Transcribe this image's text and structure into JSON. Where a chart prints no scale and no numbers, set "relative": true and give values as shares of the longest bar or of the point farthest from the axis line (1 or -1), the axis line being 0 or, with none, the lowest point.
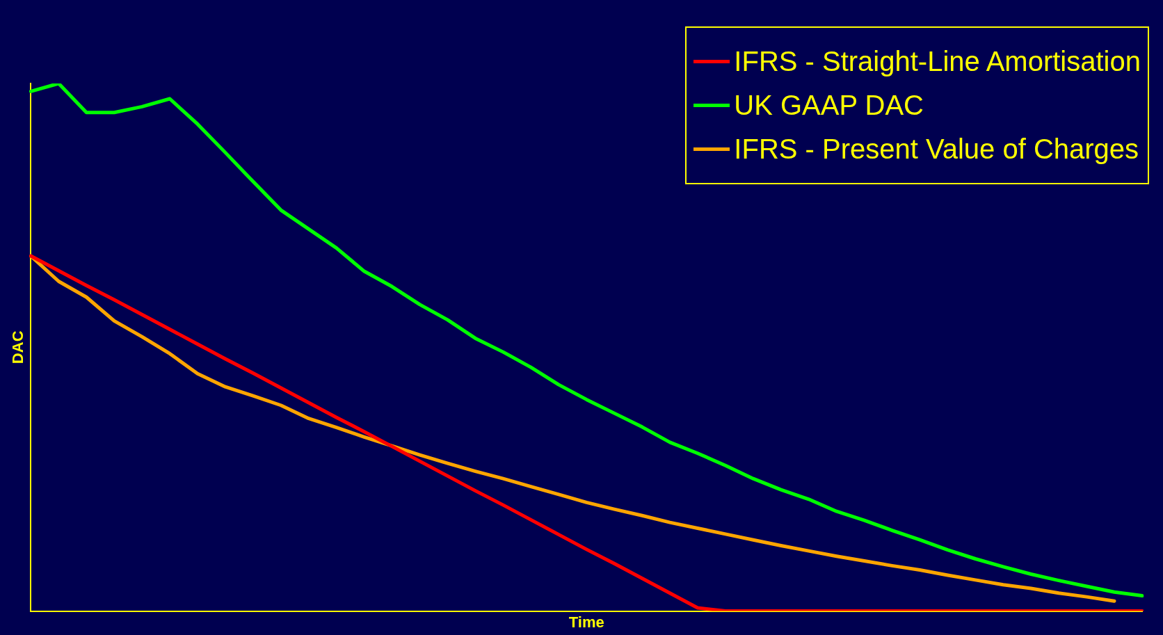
{
  "chart_data": {
    "type": "line",
    "relative": true,
    "xlabel": "Time",
    "ylabel": "DAC",
    "legend": "top right",
    "grid": false,
    "marker": "none",
    "line_style": "solid",
    "tick_labels": false,
    "categories": [
      null,
      null,
      null,
      null,
      null,
      null,
      null,
      null,
      null,
      null,
      null,
      null,
      null,
      null,
      null,
      null,
      null,
      null,
      null,
      null,
      null,
      null,
      null,
      null,
      null,
      null,
      null,
      null,
      null,
      null,
      null,
      null,
      null,
      null,
      null,
      null,
      null,
      null,
      null,
      null,
      null
    ],
    "series": [
      {
        "name": "IFRS - Straight-Line Amortisation",
        "color": "#ff0000",
        "values": [
          0.673,
          0.645,
          0.617,
          0.59,
          0.562,
          0.534,
          0.506,
          0.478,
          0.451,
          0.423,
          0.395,
          0.367,
          0.34,
          0.312,
          0.284,
          0.256,
          0.228,
          0.201,
          0.173,
          0.145,
          0.117,
          0.09,
          0.062,
          0.034,
          0.006,
          0,
          0,
          0,
          0,
          0,
          0,
          0,
          0,
          0,
          0,
          0,
          0,
          0,
          0,
          0,
          0
        ]
      },
      {
        "name": "UK GAAP DAC",
        "color": "#00ff00",
        "values": [
          0.985,
          1,
          0.945,
          0.945,
          0.956,
          0.971,
          0.923,
          0.869,
          0.814,
          0.76,
          0.724,
          0.688,
          0.644,
          0.615,
          0.581,
          0.552,
          0.517,
          0.491,
          0.462,
          0.429,
          0.401,
          0.375,
          0.349,
          0.32,
          0.299,
          0.276,
          0.251,
          0.23,
          0.212,
          0.189,
          0.172,
          0.153,
          0.135,
          0.116,
          0.099,
          0.084,
          0.07,
          0.058,
          0.047,
          0.036,
          0.029
        ]
      },
      {
        "name": "IFRS - Present Value of Charges",
        "color": "#ffa500",
        "values": [
          0.673,
          0.625,
          0.595,
          0.55,
          0.52,
          0.488,
          0.45,
          0.425,
          0.408,
          0.39,
          0.365,
          0.348,
          0.33,
          0.313,
          0.296,
          0.28,
          0.265,
          0.251,
          0.236,
          0.221,
          0.206,
          0.193,
          0.181,
          0.168,
          0.157,
          0.146,
          0.135,
          0.124,
          0.114,
          0.104,
          0.095,
          0.086,
          0.078,
          0.068,
          0.059,
          0.05,
          0.043,
          0.034,
          0.027,
          0.019,
          null
        ]
      }
    ]
  }
}
